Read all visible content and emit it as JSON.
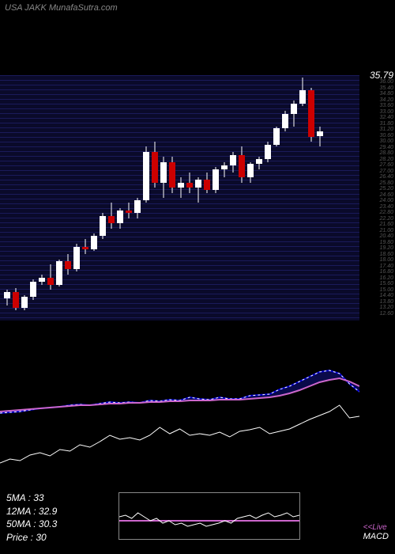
{
  "header": {
    "title": "USA JAKK MunafaSutra.com"
  },
  "main_chart": {
    "type": "candlestick",
    "background_color": "#000000",
    "grid_color": "#1a1a5a",
    "price_label": "35.79",
    "price_label_color": "#ffffff",
    "y_min": 12,
    "y_max": 36,
    "candle_width": 8,
    "candle_spacing": 11,
    "up_color": "#ffffff",
    "down_color": "#cc0000",
    "wick_color": "#ffffff",
    "candles": [
      {
        "o": 14.2,
        "h": 15.0,
        "l": 13.5,
        "c": 14.8
      },
      {
        "o": 14.8,
        "h": 15.2,
        "l": 13.0,
        "c": 13.2
      },
      {
        "o": 13.2,
        "h": 14.5,
        "l": 13.0,
        "c": 14.3
      },
      {
        "o": 14.3,
        "h": 16.0,
        "l": 14.0,
        "c": 15.8
      },
      {
        "o": 15.8,
        "h": 16.5,
        "l": 15.5,
        "c": 16.2
      },
      {
        "o": 16.2,
        "h": 17.5,
        "l": 15.0,
        "c": 15.5
      },
      {
        "o": 15.5,
        "h": 18.0,
        "l": 15.3,
        "c": 17.8
      },
      {
        "o": 17.8,
        "h": 18.5,
        "l": 16.5,
        "c": 17.0
      },
      {
        "o": 17.0,
        "h": 19.5,
        "l": 16.8,
        "c": 19.2
      },
      {
        "o": 19.2,
        "h": 20.0,
        "l": 18.5,
        "c": 19.0
      },
      {
        "o": 19.0,
        "h": 20.5,
        "l": 18.8,
        "c": 20.3
      },
      {
        "o": 20.3,
        "h": 22.5,
        "l": 20.0,
        "c": 22.2
      },
      {
        "o": 22.2,
        "h": 23.5,
        "l": 21.0,
        "c": 21.5
      },
      {
        "o": 21.5,
        "h": 23.0,
        "l": 21.0,
        "c": 22.8
      },
      {
        "o": 22.8,
        "h": 23.5,
        "l": 22.0,
        "c": 22.5
      },
      {
        "o": 22.5,
        "h": 24.0,
        "l": 22.0,
        "c": 23.8
      },
      {
        "o": 23.8,
        "h": 29.0,
        "l": 23.5,
        "c": 28.5
      },
      {
        "o": 28.5,
        "h": 29.5,
        "l": 25.0,
        "c": 25.5
      },
      {
        "o": 25.5,
        "h": 28.0,
        "l": 24.0,
        "c": 27.5
      },
      {
        "o": 27.5,
        "h": 28.0,
        "l": 24.5,
        "c": 25.0
      },
      {
        "o": 25.0,
        "h": 26.0,
        "l": 24.0,
        "c": 25.5
      },
      {
        "o": 25.5,
        "h": 26.5,
        "l": 24.5,
        "c": 25.0
      },
      {
        "o": 25.0,
        "h": 26.0,
        "l": 23.5,
        "c": 25.8
      },
      {
        "o": 25.8,
        "h": 26.5,
        "l": 24.5,
        "c": 24.8
      },
      {
        "o": 24.8,
        "h": 27.0,
        "l": 24.5,
        "c": 26.8
      },
      {
        "o": 26.8,
        "h": 27.5,
        "l": 26.0,
        "c": 27.2
      },
      {
        "o": 27.2,
        "h": 28.5,
        "l": 26.5,
        "c": 28.2
      },
      {
        "o": 28.2,
        "h": 29.0,
        "l": 25.5,
        "c": 26.0
      },
      {
        "o": 26.0,
        "h": 27.5,
        "l": 25.5,
        "c": 27.3
      },
      {
        "o": 27.3,
        "h": 28.0,
        "l": 26.8,
        "c": 27.8
      },
      {
        "o": 27.8,
        "h": 29.5,
        "l": 27.5,
        "c": 29.2
      },
      {
        "o": 29.2,
        "h": 31.0,
        "l": 29.0,
        "c": 30.8
      },
      {
        "o": 30.8,
        "h": 32.5,
        "l": 30.5,
        "c": 32.2
      },
      {
        "o": 32.2,
        "h": 33.5,
        "l": 31.0,
        "c": 33.2
      },
      {
        "o": 33.2,
        "h": 35.8,
        "l": 33.0,
        "c": 34.5
      },
      {
        "o": 34.5,
        "h": 34.8,
        "l": 29.5,
        "c": 30.0
      },
      {
        "o": 30.0,
        "h": 31.0,
        "l": 29.0,
        "c": 30.5
      }
    ]
  },
  "macd_panel": {
    "type": "line",
    "lines": {
      "signal": {
        "color": "#cc66cc",
        "width": 2,
        "points": [
          70,
          69,
          68,
          67,
          66,
          65,
          64,
          63,
          62,
          62,
          61,
          60,
          60,
          59,
          59,
          58,
          58,
          57,
          57,
          56,
          56,
          56,
          55,
          55,
          55,
          54,
          53,
          52,
          50,
          47,
          43,
          38,
          33,
          30,
          28,
          32,
          38
        ]
      },
      "macd": {
        "color": "#0000cc",
        "width": 2,
        "points": [
          72,
          71,
          70,
          68,
          66,
          65,
          64,
          62,
          61,
          62,
          60,
          58,
          59,
          58,
          59,
          56,
          57,
          55,
          56,
          52,
          54,
          55,
          52,
          54,
          54,
          50,
          49,
          48,
          42,
          38,
          32,
          26,
          20,
          18,
          22,
          35,
          45
        ]
      },
      "macd_dot": {
        "color": "#ffffff",
        "width": 1,
        "dashed": true,
        "points": [
          72,
          71,
          70,
          68,
          66,
          65,
          64,
          62,
          61,
          62,
          60,
          58,
          59,
          58,
          59,
          56,
          57,
          55,
          56,
          52,
          54,
          55,
          52,
          54,
          54,
          50,
          49,
          48,
          42,
          38,
          32,
          26,
          20,
          18,
          22,
          35,
          45
        ]
      },
      "price": {
        "color": "#ffffff",
        "width": 1,
        "points": [
          135,
          130,
          132,
          125,
          122,
          126,
          118,
          120,
          112,
          115,
          108,
          100,
          105,
          103,
          106,
          100,
          90,
          98,
          92,
          100,
          98,
          100,
          96,
          102,
          95,
          93,
          90,
          98,
          95,
          92,
          86,
          80,
          75,
          70,
          62,
          78,
          76
        ]
      }
    }
  },
  "inset_panel": {
    "line": {
      "color": "#ffffff",
      "width": 1,
      "points": [
        30,
        28,
        32,
        25,
        30,
        35,
        32,
        38,
        35,
        40,
        38,
        42,
        40,
        38,
        42,
        40,
        38,
        35,
        38,
        32,
        30,
        28,
        32,
        28,
        25,
        30,
        28,
        25,
        30,
        28
      ]
    },
    "baseline": {
      "color": "#cc66cc",
      "width": 2,
      "y": 35
    }
  },
  "stats": {
    "ma5_label": "5MA : 33",
    "ma12_label": "12MA : 32.9",
    "ma50_label": "50MA : 30.3",
    "price_label": "Price   : 30"
  },
  "live_macd": {
    "line1": "<<Live",
    "line2": "MACD"
  }
}
